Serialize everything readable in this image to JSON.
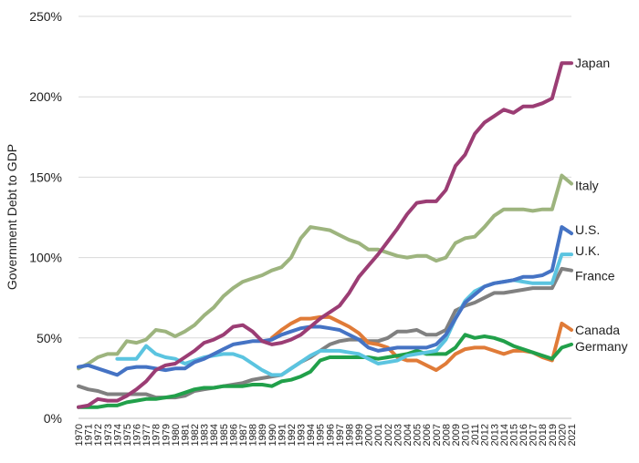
{
  "chart_data": {
    "type": "line",
    "title": "",
    "xlabel": "",
    "ylabel": "Government Debt to GDP",
    "ylim": [
      0,
      250
    ],
    "y_ticks": [
      "0%",
      "50%",
      "100%",
      "150%",
      "200%",
      "250%"
    ],
    "y_tick_values": [
      0,
      50,
      100,
      150,
      200,
      250
    ],
    "grid": "horizontal",
    "legend": "direct labels at line ends",
    "x": [
      "1970",
      "1971",
      "1972",
      "1973",
      "1974",
      "1975",
      "1976",
      "1977",
      "1978",
      "1979",
      "1980",
      "1981",
      "1982",
      "1983",
      "1984",
      "1985",
      "1986",
      "1987",
      "1988",
      "1989",
      "1990",
      "1991",
      "1992",
      "1993",
      "1994",
      "1995",
      "1996",
      "1997",
      "1998",
      "1999",
      "2000",
      "2001",
      "2002",
      "2003",
      "2004",
      "2005",
      "2006",
      "2007",
      "2008",
      "2009",
      "2010",
      "2011",
      "2012",
      "2013",
      "2014",
      "2015",
      "2016",
      "2017",
      "2018",
      "2019",
      "2020",
      "2021"
    ],
    "series": [
      {
        "name": "Japan",
        "color": "#9b3d74",
        "values": [
          null,
          null,
          null,
          null,
          null,
          null,
          null,
          null,
          null,
          null,
          null,
          null,
          null,
          null,
          null,
          null,
          null,
          null,
          null,
          null,
          null,
          null,
          null,
          null,
          null,
          null,
          null,
          null,
          null,
          null,
          null,
          null,
          null,
          null,
          null,
          null,
          null,
          null,
          null,
          null,
          null,
          null,
          null,
          null,
          null,
          null,
          null,
          null,
          null,
          null,
          null,
          null
        ],
        "values_full": [
          7,
          8,
          12,
          11,
          11,
          14,
          18,
          23,
          30,
          33,
          34,
          38,
          42,
          47,
          49,
          52,
          57,
          58,
          54,
          48,
          46,
          47,
          49,
          52,
          57,
          62,
          66,
          70,
          78,
          88,
          95,
          102,
          110,
          118,
          127,
          134,
          135,
          135,
          142,
          157,
          164,
          177,
          184,
          188,
          192,
          190,
          194,
          194,
          196,
          199,
          221,
          221
        ]
      },
      {
        "name": "Italy",
        "color": "#9db47e",
        "values_full": [
          31,
          34,
          38,
          40,
          40,
          48,
          47,
          49,
          55,
          54,
          51,
          54,
          58,
          64,
          69,
          76,
          81,
          85,
          87,
          89,
          92,
          94,
          100,
          112,
          119,
          118,
          117,
          114,
          111,
          109,
          105,
          105,
          103,
          101,
          100,
          101,
          101,
          98,
          100,
          109,
          112,
          113,
          119,
          126,
          130,
          130,
          130,
          129,
          130,
          130,
          151,
          146
        ]
      },
      {
        "name": "U.S.",
        "color": "#4573c4",
        "values_full": [
          32,
          33,
          31,
          29,
          27,
          31,
          32,
          32,
          31,
          30,
          31,
          31,
          35,
          37,
          40,
          43,
          46,
          47,
          48,
          48,
          49,
          52,
          54,
          56,
          57,
          57,
          56,
          55,
          52,
          49,
          44,
          42,
          43,
          44,
          44,
          44,
          44,
          46,
          52,
          62,
          72,
          77,
          82,
          84,
          85,
          86,
          88,
          88,
          89,
          92,
          119,
          115
        ]
      },
      {
        "name": "U.K.",
        "color": "#5bc4e0",
        "values_full": [
          null,
          null,
          null,
          null,
          37,
          37,
          37,
          45,
          40,
          38,
          37,
          34,
          36,
          38,
          39,
          40,
          40,
          38,
          34,
          30,
          27,
          27,
          31,
          35,
          39,
          42,
          42,
          42,
          41,
          40,
          37,
          34,
          35,
          36,
          39,
          40,
          41,
          42,
          49,
          62,
          73,
          79,
          82,
          84,
          85,
          86,
          85,
          84,
          84,
          84,
          102,
          102
        ]
      },
      {
        "name": "France",
        "color": "#808080",
        "values_full": [
          20,
          18,
          17,
          15,
          15,
          15,
          15,
          15,
          13,
          13,
          13,
          14,
          17,
          18,
          19,
          20,
          21,
          22,
          24,
          25,
          26,
          27,
          31,
          35,
          38,
          42,
          46,
          48,
          49,
          49,
          48,
          48,
          50,
          54,
          54,
          55,
          52,
          52,
          55,
          67,
          70,
          72,
          75,
          78,
          78,
          79,
          80,
          81,
          81,
          81,
          93,
          92
        ]
      },
      {
        "name": "Canada",
        "color": "#e07b38",
        "values_full": [
          null,
          null,
          null,
          null,
          null,
          null,
          null,
          null,
          null,
          null,
          null,
          null,
          null,
          null,
          null,
          null,
          null,
          null,
          null,
          null,
          50,
          55,
          59,
          62,
          62,
          63,
          63,
          60,
          57,
          53,
          47,
          46,
          44,
          38,
          36,
          36,
          33,
          30,
          34,
          40,
          43,
          44,
          44,
          42,
          40,
          42,
          42,
          41,
          38,
          36,
          59,
          55
        ]
      },
      {
        "name": "Germany",
        "color": "#21a04a",
        "values_full": [
          7,
          7,
          7,
          8,
          8,
          10,
          11,
          12,
          12,
          13,
          14,
          16,
          18,
          19,
          19,
          20,
          20,
          20,
          21,
          21,
          20,
          23,
          24,
          26,
          29,
          36,
          38,
          38,
          38,
          38,
          38,
          37,
          38,
          39,
          40,
          42,
          40,
          40,
          40,
          44,
          52,
          50,
          51,
          50,
          48,
          45,
          43,
          41,
          39,
          37,
          44,
          46
        ]
      }
    ]
  }
}
